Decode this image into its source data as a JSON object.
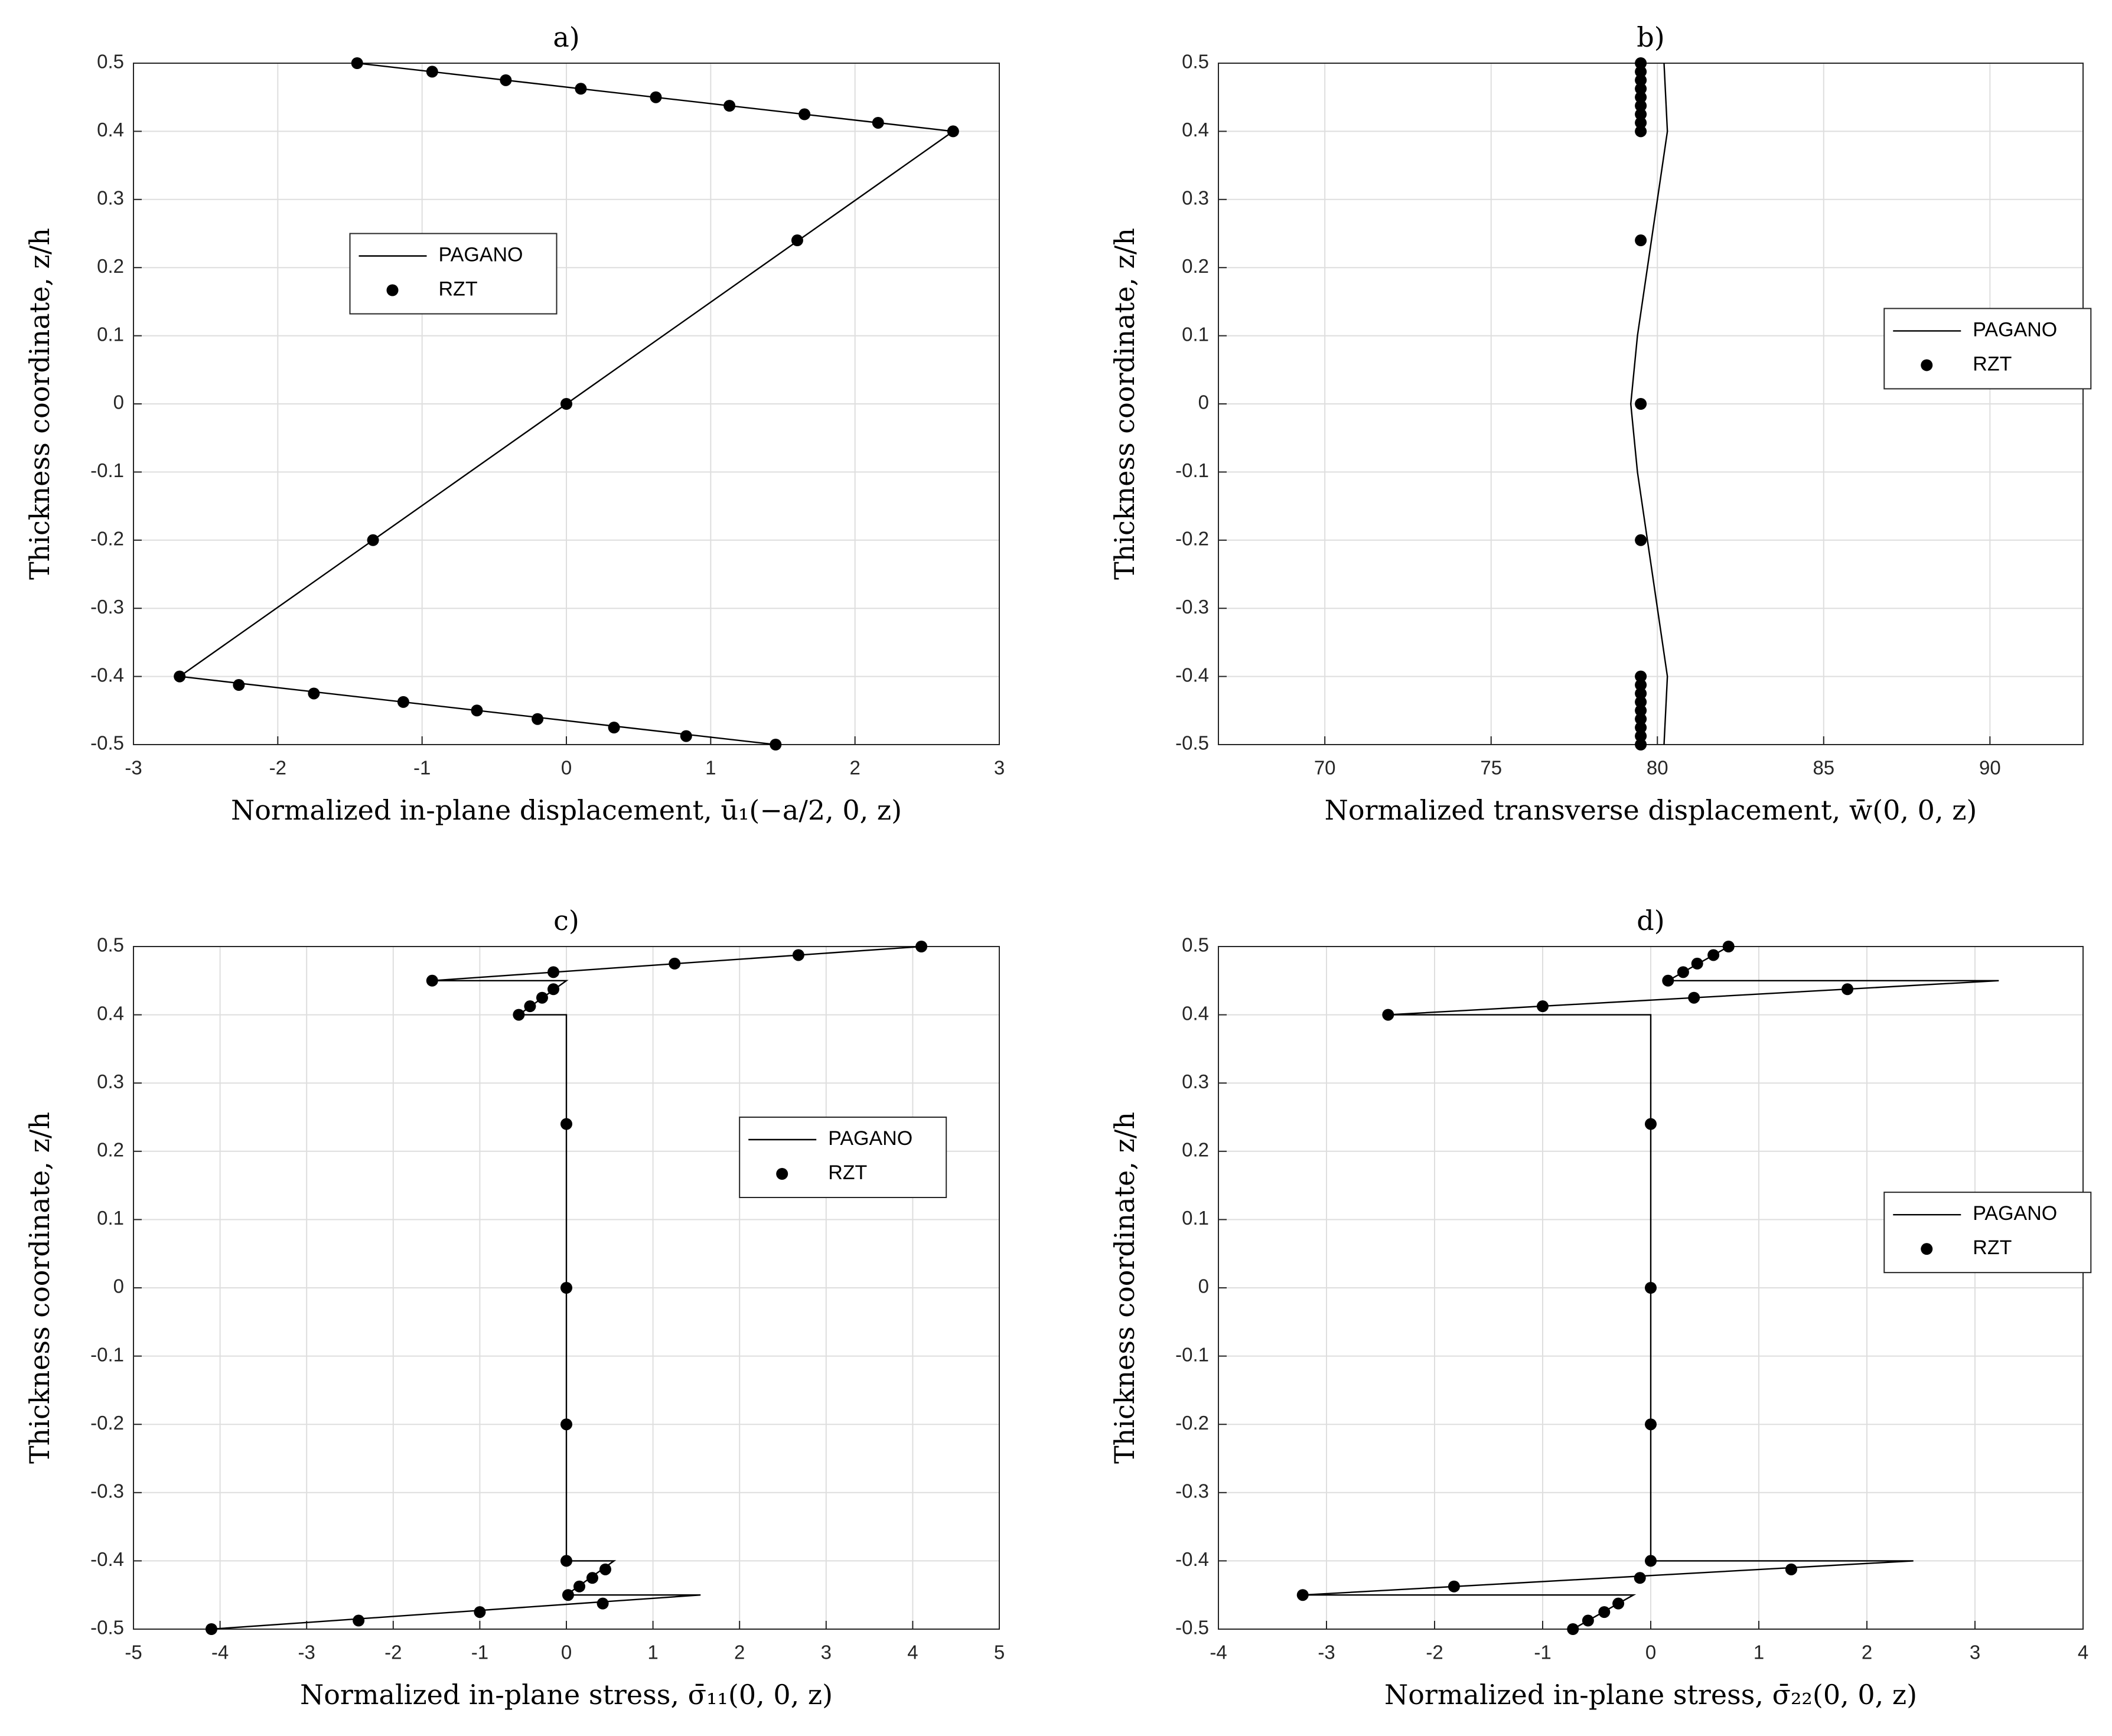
{
  "chart_data": [
    {
      "type": "line",
      "title": "a)",
      "x_label": "Normalized in-plane displacement, ū₁(−a/2, 0, z)",
      "y_label": "Thickness coordinate, z/h",
      "xlim": [
        -3,
        3
      ],
      "xticks": [
        -3,
        -2,
        -1,
        0,
        1,
        2,
        3
      ],
      "ylim": [
        -0.5,
        0.5
      ],
      "yticks": [
        -0.5,
        -0.4,
        -0.3,
        -0.2,
        -0.1,
        0,
        0.1,
        0.2,
        0.3,
        0.4,
        0.5
      ],
      "grid": true,
      "legend": "center-left",
      "series": [
        {
          "name": "PAGANO",
          "color": "#000000",
          "mode": "line",
          "x": [
            -1.45,
            2.68,
            -2.68,
            1.45
          ],
          "y": [
            0.5,
            0.4,
            -0.4,
            -0.5
          ]
        },
        {
          "name": "RZT",
          "color": "#000000",
          "mode": "markers",
          "x": [
            -1.45,
            -0.93,
            -0.42,
            0.1,
            0.62,
            1.13,
            1.65,
            2.16,
            2.68,
            1.6,
            0,
            -1.34,
            -2.68,
            -2.27,
            -1.75,
            -1.13,
            -0.62,
            -0.2,
            0.33,
            0.83,
            1.45
          ],
          "y": [
            0.5,
            0.4875,
            0.475,
            0.4625,
            0.45,
            0.4375,
            0.425,
            0.4125,
            0.4,
            0.24,
            0,
            -0.2,
            -0.4,
            -0.4125,
            -0.425,
            -0.4375,
            -0.45,
            -0.4625,
            -0.475,
            -0.4875,
            -0.5
          ]
        }
      ]
    },
    {
      "type": "line",
      "title": "b)",
      "x_label": "Normalized transverse displacement, w̄(0, 0, z)",
      "y_label": "Thickness coordinate, z/h",
      "xlim": [
        66.8,
        92.8
      ],
      "xticks": [
        70,
        75,
        80,
        85,
        90
      ],
      "ylim": [
        -0.5,
        0.5
      ],
      "yticks": [
        -0.5,
        -0.4,
        -0.3,
        -0.2,
        -0.1,
        0,
        0.1,
        0.2,
        0.3,
        0.4,
        0.5
      ],
      "grid": true,
      "legend": "center-right",
      "series": [
        {
          "name": "PAGANO",
          "color": "#000000",
          "mode": "line",
          "x": [
            80.2,
            80.3,
            80.0,
            79.7,
            79.4,
            79.2,
            79.4,
            79.7,
            80.0,
            80.3,
            80.2
          ],
          "y": [
            0.5,
            0.4,
            0.3,
            0.2,
            0.1,
            0,
            -0.1,
            -0.2,
            -0.3,
            -0.4,
            -0.5
          ]
        },
        {
          "name": "RZT",
          "color": "#000000",
          "mode": "markers",
          "x": [
            79.5,
            79.5,
            79.5,
            79.5,
            79.5,
            79.5,
            79.5,
            79.5,
            79.5,
            79.5,
            79.5,
            79.5,
            79.5,
            79.5,
            79.5,
            79.5,
            79.5,
            79.5,
            79.5,
            79.5,
            79.5
          ],
          "y": [
            0.5,
            0.4875,
            0.475,
            0.4625,
            0.45,
            0.4375,
            0.425,
            0.4125,
            0.4,
            0.24,
            0,
            -0.2,
            -0.4,
            -0.4125,
            -0.425,
            -0.4375,
            -0.45,
            -0.4625,
            -0.475,
            -0.4875,
            -0.5
          ]
        }
      ]
    },
    {
      "type": "line",
      "title": "c)",
      "x_label": "Normalized in-plane stress, σ̄₁₁(0, 0, z)",
      "y_label": "Thickness coordinate, z/h",
      "xlim": [
        -5,
        5
      ],
      "xticks": [
        -5,
        -4,
        -3,
        -2,
        -1,
        0,
        1,
        2,
        3,
        4,
        5
      ],
      "ylim": [
        -0.5,
        0.5
      ],
      "yticks": [
        -0.5,
        -0.4,
        -0.3,
        -0.2,
        -0.1,
        0,
        0.1,
        0.2,
        0.3,
        0.4,
        0.5
      ],
      "grid": true,
      "legend": "upper-right",
      "series": [
        {
          "name": "PAGANO",
          "color": "#000000",
          "mode": "line",
          "x": [
            4.1,
            -1.55,
            0,
            -0.55,
            0,
            0,
            0.55,
            0,
            1.55,
            -4.1
          ],
          "y": [
            0.5,
            0.45,
            0.45,
            0.4,
            0.4,
            -0.4,
            -0.4,
            -0.45,
            -0.45,
            -0.5
          ]
        },
        {
          "name": "RZT",
          "color": "#000000",
          "mode": "markers",
          "x": [
            4.1,
            2.68,
            1.25,
            -0.15,
            -1.55,
            -0.15,
            -0.28,
            -0.42,
            -0.55,
            0,
            0,
            0,
            0,
            0.45,
            0.3,
            0.15,
            0.02,
            0.42,
            -1.0,
            -2.4,
            -4.1
          ],
          "y": [
            0.5,
            0.4875,
            0.475,
            0.4625,
            0.45,
            0.4375,
            0.425,
            0.4125,
            0.4,
            0.24,
            0,
            -0.2,
            -0.4,
            -0.4125,
            -0.425,
            -0.4375,
            -0.45,
            -0.4625,
            -0.475,
            -0.4875,
            -0.5
          ]
        }
      ]
    },
    {
      "type": "line",
      "title": "d)",
      "x_label": "Normalized in-plane stress, σ̄₂₂(0, 0, z)",
      "y_label": "Thickness coordinate, z/h",
      "xlim": [
        -4,
        4
      ],
      "xticks": [
        -4,
        -3,
        -2,
        -1,
        0,
        1,
        2,
        3,
        4
      ],
      "ylim": [
        -0.5,
        0.5
      ],
      "yticks": [
        -0.5,
        -0.4,
        -0.3,
        -0.2,
        -0.1,
        0,
        0.1,
        0.2,
        0.3,
        0.4,
        0.5
      ],
      "grid": true,
      "legend": "center-right",
      "series": [
        {
          "name": "PAGANO",
          "color": "#000000",
          "mode": "line",
          "x": [
            0.72,
            0.16,
            3.22,
            -2.43,
            0,
            0,
            2.43,
            -3.22,
            -0.16,
            -0.72
          ],
          "y": [
            0.5,
            0.45,
            0.45,
            0.4,
            0.4,
            -0.4,
            -0.4,
            -0.45,
            -0.45,
            -0.5
          ]
        },
        {
          "name": "RZT",
          "color": "#000000",
          "mode": "markers",
          "x": [
            0.72,
            0.58,
            0.43,
            0.3,
            0.16,
            1.82,
            0.4,
            -1.0,
            -2.43,
            0,
            0,
            0,
            0,
            1.3,
            -0.1,
            -1.82,
            -3.22,
            -0.3,
            -0.43,
            -0.58,
            -0.72
          ],
          "y": [
            0.5,
            0.4875,
            0.475,
            0.4625,
            0.45,
            0.4375,
            0.425,
            0.4125,
            0.4,
            0.24,
            0,
            -0.2,
            -0.4,
            -0.4125,
            -0.425,
            -0.4375,
            -0.45,
            -0.4625,
            -0.475,
            -0.4875,
            -0.5
          ]
        }
      ]
    }
  ]
}
